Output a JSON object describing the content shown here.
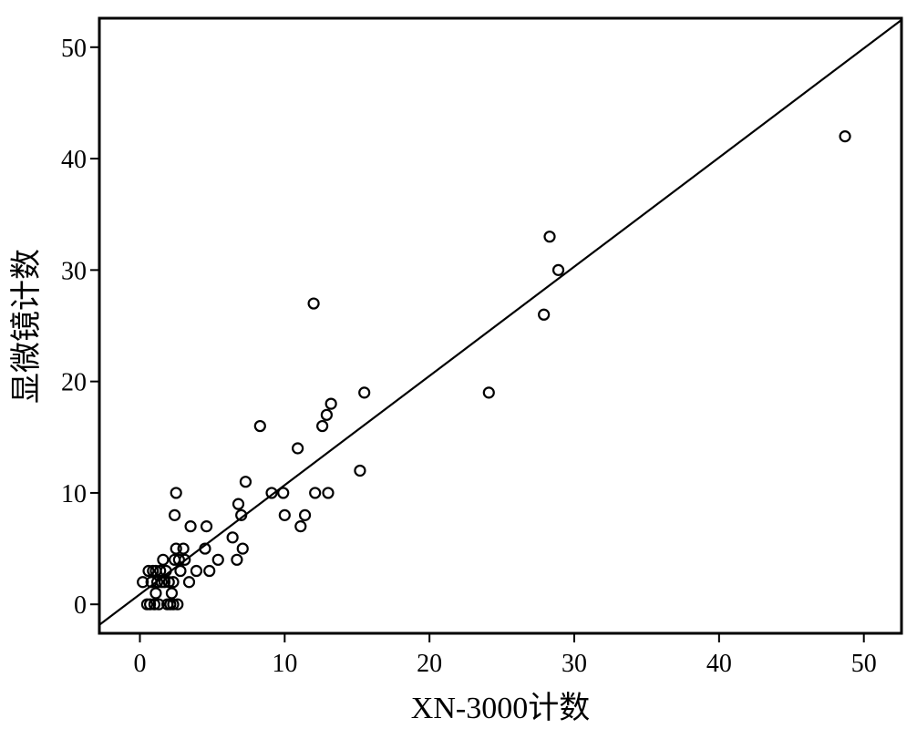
{
  "chart_data": {
    "type": "scatter",
    "xlabel": "XN-3000计数",
    "ylabel": "显微镜计数",
    "xlim": [
      -2.8,
      52.6
    ],
    "ylim": [
      -2.6,
      52.6
    ],
    "xticks": [
      "0",
      "10",
      "20",
      "30",
      "40",
      "50"
    ],
    "yticks": [
      "0",
      "10",
      "20",
      "30",
      "40",
      "50"
    ],
    "grid": false,
    "legend": "none",
    "fit_line": {
      "slope": 0.98,
      "intercept": 0.9
    },
    "points": [
      {
        "x": 0.2,
        "y": 2
      },
      {
        "x": 0.5,
        "y": 0
      },
      {
        "x": 0.6,
        "y": 3
      },
      {
        "x": 0.7,
        "y": 0
      },
      {
        "x": 0.8,
        "y": 2
      },
      {
        "x": 0.9,
        "y": 3
      },
      {
        "x": 1.0,
        "y": 0
      },
      {
        "x": 1.1,
        "y": 1
      },
      {
        "x": 1.1,
        "y": 3
      },
      {
        "x": 1.2,
        "y": 2
      },
      {
        "x": 1.3,
        "y": 0
      },
      {
        "x": 1.4,
        "y": 3
      },
      {
        "x": 1.5,
        "y": 2
      },
      {
        "x": 1.6,
        "y": 4
      },
      {
        "x": 1.7,
        "y": 2
      },
      {
        "x": 1.8,
        "y": 3
      },
      {
        "x": 1.9,
        "y": 0
      },
      {
        "x": 2.0,
        "y": 2
      },
      {
        "x": 2.1,
        "y": 0
      },
      {
        "x": 2.2,
        "y": 1
      },
      {
        "x": 2.3,
        "y": 2
      },
      {
        "x": 2.3,
        "y": 0
      },
      {
        "x": 2.4,
        "y": 8
      },
      {
        "x": 2.4,
        "y": 4
      },
      {
        "x": 2.5,
        "y": 10
      },
      {
        "x": 2.5,
        "y": 5
      },
      {
        "x": 2.6,
        "y": 0
      },
      {
        "x": 2.7,
        "y": 4
      },
      {
        "x": 2.8,
        "y": 3
      },
      {
        "x": 3.0,
        "y": 5
      },
      {
        "x": 3.1,
        "y": 4
      },
      {
        "x": 3.4,
        "y": 2
      },
      {
        "x": 3.5,
        "y": 7
      },
      {
        "x": 3.9,
        "y": 3
      },
      {
        "x": 4.5,
        "y": 5
      },
      {
        "x": 4.6,
        "y": 7
      },
      {
        "x": 4.8,
        "y": 3
      },
      {
        "x": 5.4,
        "y": 4
      },
      {
        "x": 6.4,
        "y": 6
      },
      {
        "x": 6.7,
        "y": 4
      },
      {
        "x": 6.8,
        "y": 9
      },
      {
        "x": 7.0,
        "y": 8
      },
      {
        "x": 7.1,
        "y": 5
      },
      {
        "x": 7.3,
        "y": 11
      },
      {
        "x": 8.3,
        "y": 16
      },
      {
        "x": 9.1,
        "y": 10
      },
      {
        "x": 9.9,
        "y": 10
      },
      {
        "x": 10.0,
        "y": 8
      },
      {
        "x": 10.9,
        "y": 14
      },
      {
        "x": 11.1,
        "y": 7
      },
      {
        "x": 11.4,
        "y": 8
      },
      {
        "x": 12.0,
        "y": 27
      },
      {
        "x": 12.1,
        "y": 10
      },
      {
        "x": 12.6,
        "y": 16
      },
      {
        "x": 12.9,
        "y": 17
      },
      {
        "x": 13.0,
        "y": 10
      },
      {
        "x": 13.2,
        "y": 18
      },
      {
        "x": 15.2,
        "y": 12
      },
      {
        "x": 15.5,
        "y": 19
      },
      {
        "x": 24.1,
        "y": 19
      },
      {
        "x": 27.9,
        "y": 26
      },
      {
        "x": 28.3,
        "y": 33
      },
      {
        "x": 28.9,
        "y": 30
      },
      {
        "x": 48.7,
        "y": 42
      }
    ]
  }
}
